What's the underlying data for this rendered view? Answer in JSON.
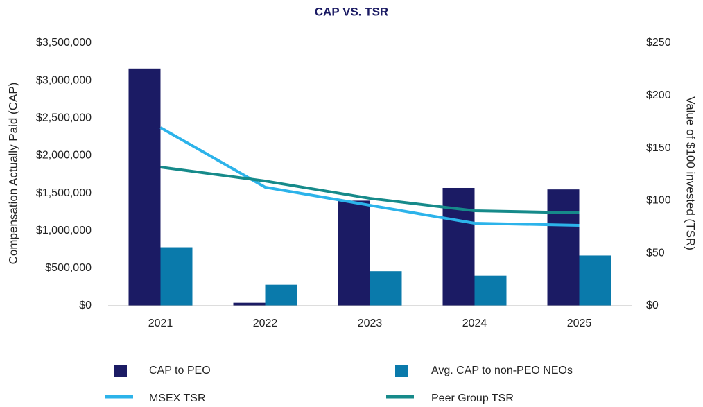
{
  "chart_data": {
    "type": "bar_line",
    "title": "CAP VS. TSR",
    "y_label": "Compensation Actually Paid (CAP)",
    "y2_label": "Value of $100 invested (TSR)",
    "categories": [
      "2021",
      "2022",
      "2023",
      "2024",
      "2025"
    ],
    "series": [
      {
        "name": "CAP to PEO",
        "type": "bar",
        "color": "#1b1b64",
        "values": [
          3160000,
          40000,
          1400000,
          1570000,
          1550000
        ]
      },
      {
        "name": "Avg. CAP to non-PEO NEOs",
        "type": "bar",
        "color": "#0a7aab",
        "values": [
          780000,
          280000,
          460000,
          400000,
          670000
        ]
      },
      {
        "name": "MSEX TSR",
        "type": "line",
        "axis": "y2",
        "color": "#2cb3ea",
        "values": [
          169.5,
          112.8,
          95.6,
          78.5,
          76.5
        ]
      },
      {
        "name": "Peer Group TSR",
        "type": "line",
        "axis": "y2",
        "color": "#168a8a",
        "values": [
          131.9,
          118.7,
          102.2,
          90.4,
          88.4
        ]
      }
    ],
    "ylim": [
      0,
      3500000
    ],
    "yticks": [
      {
        "value": 0,
        "label": "$0"
      },
      {
        "value": 500000,
        "label": "$500,000"
      },
      {
        "value": 1000000,
        "label": "$1,000,000"
      },
      {
        "value": 1500000,
        "label": "$1,500,000"
      },
      {
        "value": 2000000,
        "label": "$2,000,000"
      },
      {
        "value": 2500000,
        "label": "$2,500,000"
      },
      {
        "value": 3000000,
        "label": "$3,000,000"
      },
      {
        "value": 3500000,
        "label": "$3,500,000"
      }
    ],
    "y2lim": [
      0,
      250
    ],
    "y2ticks": [
      {
        "value": 0,
        "label": "$0"
      },
      {
        "value": 50,
        "label": "$50"
      },
      {
        "value": 100,
        "label": "$100"
      },
      {
        "value": 150,
        "label": "$150"
      },
      {
        "value": 200,
        "label": "$200"
      },
      {
        "value": 250,
        "label": "$250"
      }
    ],
    "legend": "bottom"
  }
}
